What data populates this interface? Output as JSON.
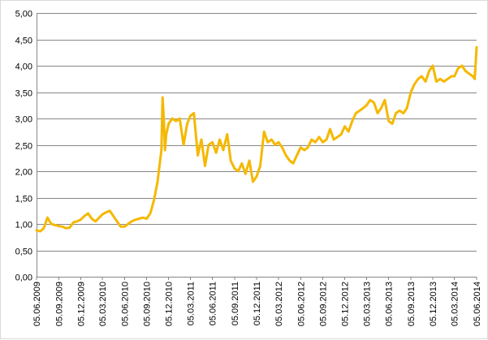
{
  "chart_data": {
    "type": "line",
    "title": "",
    "xlabel": "",
    "ylabel": "",
    "ylim": [
      0,
      5
    ],
    "yticks": [
      "0,00",
      "0,50",
      "1,00",
      "1,50",
      "2,00",
      "2,50",
      "3,00",
      "3,50",
      "4,00",
      "4,50",
      "5,00"
    ],
    "xticks": [
      "05.06.2009",
      "05.09.2009",
      "05.12.2009",
      "05.03.2010",
      "05.06.2010",
      "05.09.2010",
      "05.12.2010",
      "05.03.2011",
      "05.06.2011",
      "05.09.2011",
      "05.12.2011",
      "05.03.2012",
      "05.06.2012",
      "05.09.2012",
      "05.12.2012",
      "05.03.2013",
      "05.06.2013",
      "05.09.2013",
      "05.12.2013",
      "05.03.2014",
      "05.06.2014"
    ],
    "grid": true,
    "legend": "none",
    "color": "#F5B800",
    "series": [
      {
        "x": [
          "05.06.2009",
          "20.06.2009",
          "05.07.2009",
          "20.07.2009",
          "05.08.2009",
          "20.08.2009",
          "05.09.2009",
          "20.09.2009",
          "05.10.2009",
          "20.10.2009",
          "05.11.2009",
          "20.11.2009",
          "05.12.2009",
          "20.12.2009",
          "05.01.2010",
          "20.01.2010",
          "05.02.2010",
          "20.02.2010",
          "05.03.2010",
          "20.03.2010",
          "05.04.2010",
          "20.04.2010",
          "05.05.2010",
          "20.05.2010",
          "05.06.2010",
          "20.06.2010",
          "05.07.2010",
          "20.07.2010",
          "05.08.2010",
          "20.08.2010",
          "05.09.2010",
          "20.09.2010",
          "05.10.2010",
          "20.10.2010",
          "05.11.2010",
          "10.11.2010",
          "15.11.2010",
          "20.11.2010",
          "25.11.2010",
          "05.12.2010",
          "20.12.2010",
          "05.01.2011",
          "20.01.2011",
          "05.02.2011",
          "20.02.2011",
          "05.03.2011",
          "20.03.2011",
          "05.04.2011",
          "20.04.2011",
          "05.05.2011",
          "20.05.2011",
          "05.06.2011",
          "20.06.2011",
          "05.07.2011",
          "20.07.2011",
          "05.08.2011",
          "20.08.2011",
          "05.09.2011",
          "20.09.2011",
          "05.10.2011",
          "20.10.2011",
          "05.11.2011",
          "20.11.2011",
          "05.12.2011",
          "20.12.2011",
          "05.01.2012",
          "20.01.2012",
          "05.02.2012",
          "20.02.2012",
          "05.03.2012",
          "20.03.2012",
          "05.04.2012",
          "20.04.2012",
          "05.05.2012",
          "20.05.2012",
          "05.06.2012",
          "20.06.2012",
          "05.07.2012",
          "20.07.2012",
          "05.08.2012",
          "20.08.2012",
          "05.09.2012",
          "20.09.2012",
          "05.10.2012",
          "20.10.2012",
          "05.11.2012",
          "20.11.2012",
          "05.12.2012",
          "20.12.2012",
          "05.01.2013",
          "20.01.2013",
          "05.02.2013",
          "20.02.2013",
          "05.03.2013",
          "20.03.2013",
          "05.04.2013",
          "20.04.2013",
          "05.05.2013",
          "20.05.2013",
          "05.06.2013",
          "20.06.2013",
          "05.07.2013",
          "20.07.2013",
          "05.08.2013",
          "20.08.2013",
          "05.09.2013",
          "20.09.2013",
          "05.10.2013",
          "20.10.2013",
          "05.11.2013",
          "20.11.2013",
          "05.12.2013",
          "20.12.2013",
          "05.01.2014",
          "20.01.2014",
          "05.02.2014",
          "20.02.2014",
          "05.03.2014",
          "20.03.2014",
          "05.04.2014",
          "20.04.2014",
          "05.05.2014",
          "20.05.2014",
          "28.05.2014",
          "05.06.2014"
        ],
        "values": [
          0.88,
          0.86,
          0.92,
          1.12,
          1.0,
          0.98,
          0.96,
          0.95,
          0.92,
          0.93,
          1.03,
          1.05,
          1.08,
          1.15,
          1.2,
          1.1,
          1.05,
          1.12,
          1.18,
          1.22,
          1.25,
          1.15,
          1.05,
          0.95,
          0.95,
          1.0,
          1.05,
          1.08,
          1.1,
          1.12,
          1.1,
          1.2,
          1.45,
          1.8,
          2.4,
          3.4,
          3.0,
          2.4,
          2.7,
          2.9,
          3.0,
          2.95,
          3.0,
          2.5,
          2.9,
          3.05,
          3.1,
          2.3,
          2.6,
          2.1,
          2.5,
          2.55,
          2.35,
          2.6,
          2.4,
          2.7,
          2.2,
          2.05,
          2.0,
          2.15,
          1.95,
          2.2,
          1.8,
          1.9,
          2.1,
          2.75,
          2.55,
          2.6,
          2.5,
          2.55,
          2.45,
          2.3,
          2.2,
          2.15,
          2.3,
          2.45,
          2.4,
          2.45,
          2.6,
          2.55,
          2.65,
          2.55,
          2.6,
          2.8,
          2.6,
          2.65,
          2.7,
          2.85,
          2.75,
          2.95,
          3.1,
          3.15,
          3.2,
          3.25,
          3.35,
          3.3,
          3.1,
          3.2,
          3.35,
          2.95,
          2.9,
          3.1,
          3.15,
          3.1,
          3.2,
          3.5,
          3.65,
          3.75,
          3.8,
          3.7,
          3.9,
          4.0,
          3.7,
          3.75,
          3.7,
          3.75,
          3.8,
          3.8,
          3.95,
          4.0,
          3.9,
          3.85,
          3.8,
          3.75,
          4.35
        ]
      }
    ]
  }
}
